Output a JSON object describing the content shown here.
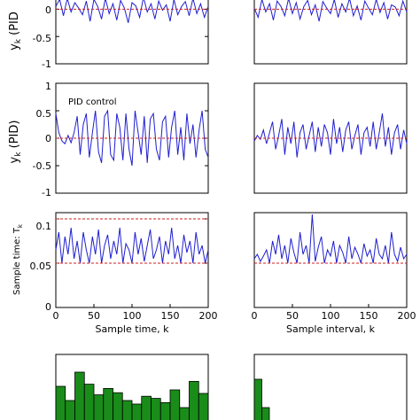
{
  "figure": {
    "background": "#ffffff",
    "colors": {
      "signal": "#1f1fd0",
      "reference": "#d11f1f",
      "histogram": "#1a8c1a",
      "axes": "#000000"
    }
  },
  "chart_data": [
    {
      "id": "left-top",
      "type": "line",
      "ylabel_main": "y",
      "ylabel_sub": "k",
      "ylabel_tail": " (PID",
      "xlim": [
        0,
        200
      ],
      "ylim": [
        -1,
        0.25
      ],
      "yticks": [
        {
          "v": 0,
          "label": "0"
        },
        {
          "v": -0.5,
          "label": "-0.5"
        },
        {
          "v": -1,
          "label": "-1"
        }
      ],
      "series": [
        {
          "role": "signal",
          "color": "#1f1fd0",
          "x": [
            0,
            5,
            10,
            15,
            20,
            25,
            30,
            35,
            40,
            45,
            50,
            55,
            60,
            65,
            70,
            75,
            80,
            85,
            90,
            95,
            100,
            105,
            110,
            115,
            120,
            125,
            130,
            135,
            140,
            145,
            150,
            155,
            160,
            165,
            170,
            175,
            180,
            185,
            190,
            195,
            200
          ],
          "y": [
            0.05,
            0.18,
            -0.12,
            0.2,
            -0.05,
            0.12,
            0.02,
            -0.1,
            0.15,
            -0.22,
            0.18,
            0.05,
            -0.18,
            0.2,
            -0.08,
            0.1,
            -0.2,
            0.16,
            0.02,
            -0.25,
            0.12,
            0.06,
            -0.15,
            0.22,
            -0.05,
            0.1,
            -0.18,
            0.15,
            -0.02,
            0.08,
            -0.22,
            0.18,
            -0.1,
            0.05,
            0.14,
            -0.12,
            0.2,
            -0.08,
            0.1,
            -0.15,
            0.05
          ]
        },
        {
          "role": "reference",
          "color": "#d11f1f",
          "dashed": true,
          "x": [
            0,
            200
          ],
          "y": [
            0,
            0
          ]
        }
      ]
    },
    {
      "id": "right-top",
      "type": "line",
      "xlim": [
        0,
        200
      ],
      "ylim": [
        -1,
        0.25
      ],
      "series": [
        {
          "role": "signal",
          "color": "#1f1fd0",
          "x": [
            0,
            5,
            10,
            15,
            20,
            25,
            30,
            35,
            40,
            45,
            50,
            55,
            60,
            65,
            70,
            75,
            80,
            85,
            90,
            95,
            100,
            105,
            110,
            115,
            120,
            125,
            130,
            135,
            140,
            145,
            150,
            155,
            160,
            165,
            170,
            175,
            180,
            185,
            190,
            195,
            200
          ],
          "y": [
            0.02,
            -0.15,
            0.18,
            -0.05,
            0.1,
            -0.2,
            0.15,
            0.05,
            -0.12,
            0.2,
            -0.08,
            0.12,
            -0.18,
            0.05,
            0.16,
            -0.1,
            0.08,
            -0.22,
            0.14,
            0.02,
            -0.08,
            0.18,
            -0.15,
            0.1,
            -0.05,
            0.2,
            -0.12,
            0.06,
            -0.2,
            0.15,
            0.02,
            -0.1,
            0.18,
            -0.06,
            0.12,
            -0.18,
            0.08,
            0.04,
            -0.12,
            0.15,
            -0.05
          ]
        },
        {
          "role": "reference",
          "color": "#d11f1f",
          "dashed": true,
          "x": [
            0,
            200
          ],
          "y": [
            0,
            0
          ]
        }
      ]
    },
    {
      "id": "left-mid",
      "type": "line",
      "ylabel_main": "y",
      "ylabel_sub": "k",
      "ylabel_tail": " (PID)",
      "annotation": "PID control",
      "xlim": [
        0,
        200
      ],
      "ylim": [
        -1,
        1
      ],
      "yticks": [
        {
          "v": 1,
          "label": "1"
        },
        {
          "v": 0.5,
          "label": "0.5"
        },
        {
          "v": 0,
          "label": "0"
        },
        {
          "v": -0.5,
          "label": "-0.5"
        },
        {
          "v": -1,
          "label": "-1"
        }
      ],
      "series": [
        {
          "role": "signal",
          "color": "#1f1fd0",
          "x": [
            0,
            4,
            8,
            12,
            16,
            20,
            24,
            28,
            32,
            36,
            40,
            44,
            48,
            52,
            56,
            60,
            64,
            68,
            72,
            76,
            80,
            84,
            88,
            92,
            96,
            100,
            104,
            108,
            112,
            116,
            120,
            124,
            128,
            132,
            136,
            140,
            144,
            148,
            152,
            156,
            160,
            164,
            168,
            172,
            176,
            180,
            184,
            188,
            192,
            196,
            200
          ],
          "y": [
            0.45,
            0.1,
            -0.05,
            -0.1,
            0.05,
            -0.08,
            0.1,
            0.4,
            -0.3,
            0.25,
            0.45,
            -0.35,
            0.1,
            0.5,
            -0.25,
            -0.45,
            0.4,
            0.5,
            -0.3,
            -0.4,
            0.45,
            0.2,
            -0.4,
            0.45,
            -0.2,
            -0.5,
            0.5,
            0.1,
            -0.3,
            0.4,
            -0.45,
            0.35,
            0.45,
            -0.2,
            -0.4,
            0.3,
            0.4,
            -0.35,
            0.2,
            0.5,
            -0.3,
            0.2,
            -0.4,
            0.45,
            -0.1,
            0.25,
            -0.35,
            0.15,
            0.5,
            -0.2,
            -0.35
          ]
        },
        {
          "role": "reference",
          "color": "#d11f1f",
          "dashed": true,
          "x": [
            0,
            200
          ],
          "y": [
            0,
            0
          ]
        }
      ]
    },
    {
      "id": "right-mid",
      "type": "line",
      "xlim": [
        0,
        200
      ],
      "ylim": [
        -1,
        1
      ],
      "series": [
        {
          "role": "signal",
          "color": "#1f1fd0",
          "x": [
            0,
            4,
            8,
            12,
            16,
            20,
            24,
            28,
            32,
            36,
            40,
            44,
            48,
            52,
            56,
            60,
            64,
            68,
            72,
            76,
            80,
            84,
            88,
            92,
            96,
            100,
            104,
            108,
            112,
            116,
            120,
            124,
            128,
            132,
            136,
            140,
            144,
            148,
            152,
            156,
            160,
            164,
            168,
            172,
            176,
            180,
            184,
            188,
            192,
            196,
            200
          ],
          "y": [
            -0.05,
            0.05,
            -0.02,
            0.15,
            -0.1,
            0.1,
            0.3,
            -0.2,
            0.05,
            0.35,
            -0.3,
            0.2,
            -0.1,
            0.3,
            -0.35,
            0.1,
            0.25,
            -0.2,
            0.05,
            0.3,
            -0.25,
            0.2,
            -0.15,
            0.25,
            0.1,
            -0.3,
            0.35,
            -0.1,
            0.2,
            -0.25,
            0.15,
            0.3,
            -0.2,
            0.05,
            0.25,
            -0.3,
            0.1,
            0.2,
            -0.15,
            0.3,
            -0.2,
            0.1,
            0.45,
            -0.15,
            0.2,
            -0.3,
            0.1,
            0.25,
            -0.2,
            0.15,
            -0.1
          ]
        },
        {
          "role": "reference",
          "color": "#d11f1f",
          "dashed": true,
          "x": [
            0,
            200
          ],
          "y": [
            0,
            0
          ]
        }
      ]
    },
    {
      "id": "left-bottom",
      "type": "line",
      "ylabel_main": "Sample time: T",
      "ylabel_sub": "k",
      "xlabel": "Sample time, k",
      "xlim": [
        0,
        200
      ],
      "ylim": [
        0,
        0.107
      ],
      "xticks": [
        {
          "v": 0,
          "label": "0"
        },
        {
          "v": 50,
          "label": "50"
        },
        {
          "v": 100,
          "label": "100"
        },
        {
          "v": 150,
          "label": "150"
        },
        {
          "v": 200,
          "label": "200"
        }
      ],
      "yticks": [
        {
          "v": 0.1,
          "label": "0.1"
        },
        {
          "v": 0.05,
          "label": "0.05"
        },
        {
          "v": 0,
          "label": "0"
        }
      ],
      "series": [
        {
          "role": "signal",
          "color": "#1f1fd0",
          "x": [
            0,
            4,
            8,
            12,
            16,
            20,
            24,
            28,
            32,
            36,
            40,
            44,
            48,
            52,
            56,
            60,
            64,
            68,
            72,
            76,
            80,
            84,
            88,
            92,
            96,
            100,
            104,
            108,
            112,
            116,
            120,
            124,
            128,
            132,
            136,
            140,
            144,
            148,
            152,
            156,
            160,
            164,
            168,
            172,
            176,
            180,
            184,
            188,
            192,
            196,
            200
          ],
          "y": [
            0.065,
            0.085,
            0.05,
            0.08,
            0.06,
            0.09,
            0.055,
            0.075,
            0.05,
            0.085,
            0.065,
            0.05,
            0.08,
            0.06,
            0.088,
            0.05,
            0.07,
            0.082,
            0.055,
            0.075,
            0.06,
            0.09,
            0.05,
            0.072,
            0.065,
            0.05,
            0.085,
            0.06,
            0.078,
            0.052,
            0.07,
            0.088,
            0.055,
            0.065,
            0.08,
            0.05,
            0.075,
            0.06,
            0.09,
            0.055,
            0.07,
            0.05,
            0.082,
            0.062,
            0.075,
            0.05,
            0.085,
            0.06,
            0.07,
            0.05,
            0.065
          ]
        },
        {
          "role": "reference",
          "color": "#d11f1f",
          "dashed": true,
          "x": [
            0,
            200
          ],
          "y": [
            0.1,
            0.1
          ]
        },
        {
          "role": "reference",
          "color": "#d11f1f",
          "dashed": true,
          "x": [
            0,
            200
          ],
          "y": [
            0.05,
            0.05
          ]
        }
      ]
    },
    {
      "id": "right-bottom",
      "type": "line",
      "xlabel": "Sample interval, k",
      "xlim": [
        0,
        200
      ],
      "ylim": [
        0,
        0.107
      ],
      "xticks": [
        {
          "v": 0,
          "label": "0"
        },
        {
          "v": 50,
          "label": "50"
        },
        {
          "v": 100,
          "label": "100"
        },
        {
          "v": 150,
          "label": "150"
        },
        {
          "v": 200,
          "label": "200"
        }
      ],
      "series": [
        {
          "role": "signal",
          "color": "#1f1fd0",
          "x": [
            0,
            4,
            8,
            12,
            16,
            20,
            24,
            28,
            32,
            36,
            40,
            44,
            48,
            52,
            56,
            60,
            64,
            68,
            72,
            76,
            80,
            84,
            88,
            92,
            96,
            100,
            104,
            108,
            112,
            116,
            120,
            124,
            128,
            132,
            136,
            140,
            144,
            148,
            152,
            156,
            160,
            164,
            168,
            172,
            176,
            180,
            184,
            188,
            192,
            196,
            200
          ],
          "y": [
            0.055,
            0.06,
            0.052,
            0.058,
            0.065,
            0.05,
            0.075,
            0.06,
            0.082,
            0.055,
            0.07,
            0.05,
            0.078,
            0.062,
            0.05,
            0.085,
            0.06,
            0.07,
            0.05,
            0.105,
            0.052,
            0.068,
            0.08,
            0.05,
            0.065,
            0.058,
            0.075,
            0.05,
            0.07,
            0.062,
            0.05,
            0.08,
            0.055,
            0.068,
            0.06,
            0.05,
            0.072,
            0.058,
            0.065,
            0.05,
            0.078,
            0.06,
            0.055,
            0.07,
            0.05,
            0.085,
            0.06,
            0.052,
            0.068,
            0.055,
            0.06
          ]
        },
        {
          "role": "reference",
          "color": "#d11f1f",
          "dashed": true,
          "x": [
            0,
            200
          ],
          "y": [
            0.05,
            0.05
          ]
        }
      ]
    },
    {
      "id": "left-histogram",
      "type": "bar",
      "color": "#1a8c1a",
      "values": [
        0.55,
        0.35,
        0.75,
        0.58,
        0.43,
        0.52,
        0.46,
        0.35,
        0.3,
        0.41,
        0.38,
        0.32,
        0.5,
        0.25,
        0.62,
        0.45
      ]
    },
    {
      "id": "right-histogram",
      "type": "bar",
      "color": "#1a8c1a",
      "values": [
        0.65,
        0.25
      ]
    }
  ]
}
